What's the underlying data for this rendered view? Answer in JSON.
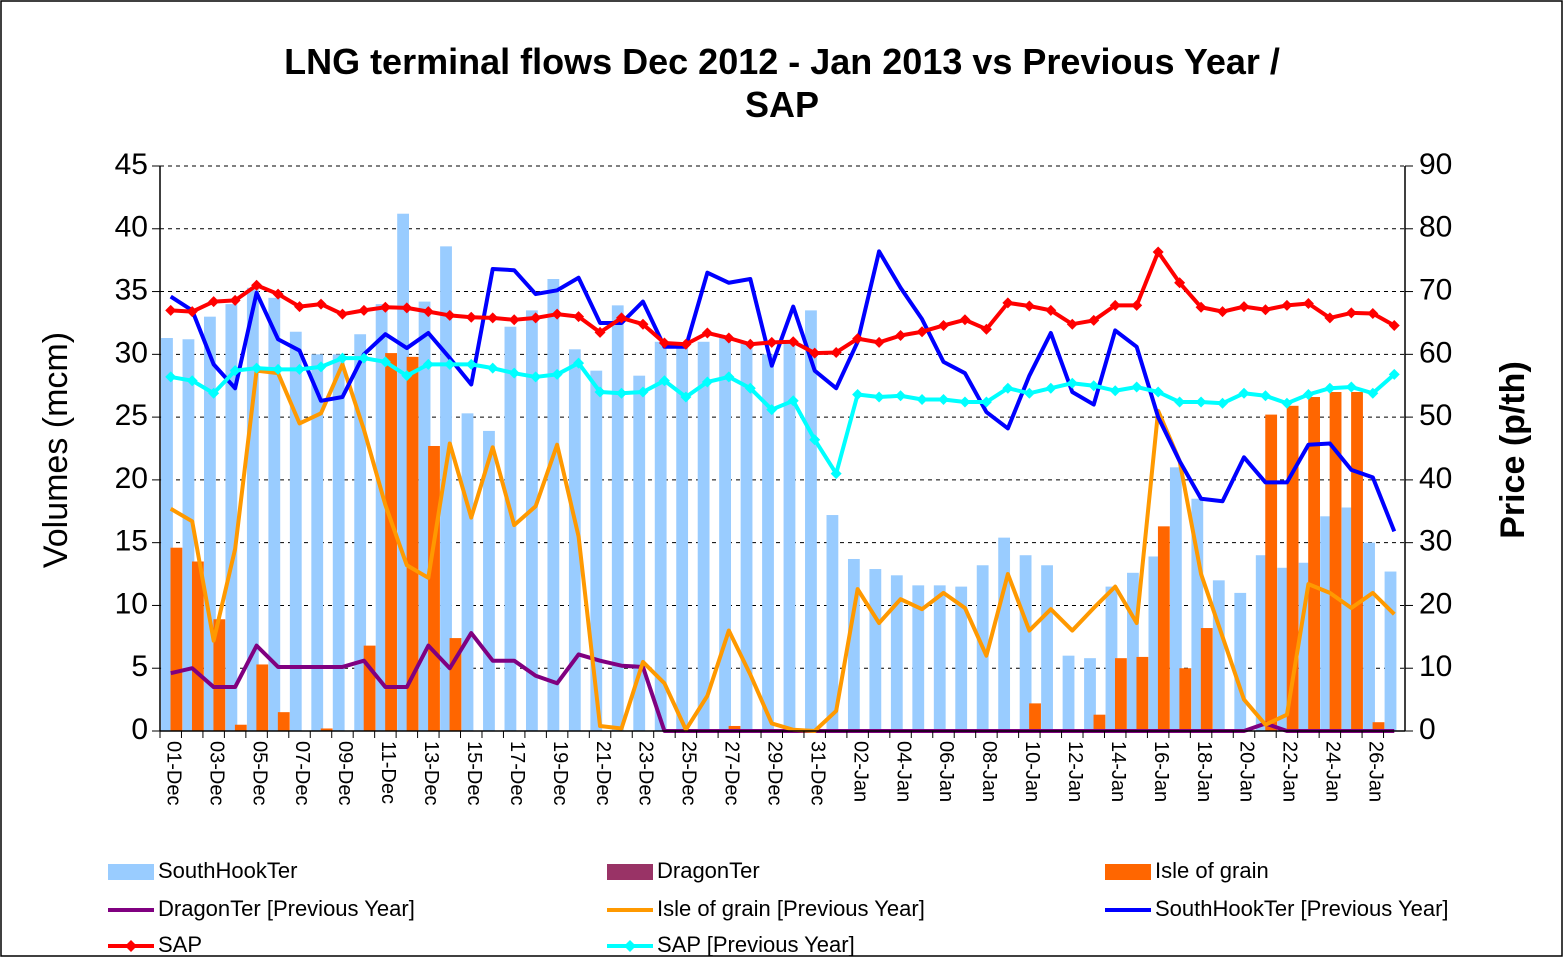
{
  "chart_data": {
    "type": "bar",
    "title": "LNG terminal flows Dec 2012 - Jan 2013 vs Previous Year / SAP",
    "y_label": "Volumes (mcm)",
    "y2_label": "Price (p/th)",
    "categories": [
      "01-Dec",
      null,
      "03-Dec",
      null,
      "05-Dec",
      null,
      "07-Dec",
      null,
      "09-Dec",
      null,
      "11-Dec",
      null,
      "13-Dec",
      null,
      "15-Dec",
      null,
      "17-Dec",
      null,
      "19-Dec",
      null,
      "21-Dec",
      null,
      "23-Dec",
      null,
      "25-Dec",
      null,
      "27-Dec",
      null,
      "29-Dec",
      null,
      "31-Dec",
      null,
      "02-Jan",
      null,
      "04-Jan",
      null,
      "06-Jan",
      null,
      "08-Jan",
      null,
      "10-Jan",
      null,
      "12-Jan",
      null,
      "14-Jan",
      null,
      "16-Jan",
      null,
      "18-Jan",
      null,
      "20-Jan",
      null,
      "22-Jan",
      null,
      "24-Jan",
      null,
      "26-Jan",
      null
    ],
    "ylim": [
      0,
      45
    ],
    "yticks": [
      0,
      5,
      10,
      15,
      20,
      25,
      30,
      35,
      40,
      45
    ],
    "y2lim": [
      0,
      90
    ],
    "y2ticks": [
      0,
      10,
      20,
      30,
      40,
      50,
      60,
      70,
      80,
      90
    ],
    "grid": true,
    "series": [
      {
        "name": "SouthHookTer",
        "type": "bar",
        "color": "#99ccff",
        "values": [
          31.3,
          31.2,
          33,
          34,
          35.3,
          34.5,
          31.8,
          30,
          30,
          31.6,
          34,
          41.2,
          34.2,
          38.6,
          25.3,
          23.9,
          32.2,
          33.5,
          36,
          30.4,
          28.7,
          33.9,
          28.3,
          31,
          30.5,
          31,
          31.5,
          31,
          30,
          31,
          33.5,
          17.2,
          13.7,
          12.9,
          12.4,
          11.6,
          11.6,
          11.5,
          13.2,
          15.4,
          14,
          13.2,
          6,
          5.8,
          11.5,
          12.6,
          13.9,
          21,
          18.5,
          12,
          11,
          14,
          13,
          13.4,
          17.1,
          17.8,
          15,
          12.7
        ]
      },
      {
        "name": "DragonTer",
        "type": "bar",
        "color": "#993366",
        "values": [
          0,
          0,
          0,
          0,
          0,
          0,
          0,
          0,
          0,
          0,
          0,
          0,
          0,
          0,
          0,
          0,
          0,
          0,
          0,
          0,
          0,
          0,
          0,
          0,
          0,
          0,
          0,
          0,
          0,
          0,
          0,
          0,
          0,
          0,
          0,
          0,
          0,
          0,
          0,
          0,
          0,
          0,
          0,
          0,
          0,
          0,
          0,
          0,
          0,
          0,
          0,
          0,
          0,
          0,
          0,
          0,
          0,
          0
        ]
      },
      {
        "name": "Isle of grain",
        "type": "bar",
        "color": "#ff6600",
        "values": [
          14.6,
          13.5,
          8.9,
          0.5,
          5.3,
          1.5,
          0,
          0.2,
          0,
          6.8,
          30.1,
          29.8,
          22.7,
          7.4,
          0,
          0,
          0,
          0,
          0,
          0,
          0,
          0,
          0,
          0,
          0,
          0,
          0.4,
          0,
          0,
          0,
          0,
          0,
          0,
          0,
          0,
          0,
          0,
          0,
          0,
          0,
          2.2,
          0,
          0,
          1.3,
          5.8,
          5.9,
          16.3,
          5,
          8.2,
          0,
          0,
          25.2,
          25.9,
          26.6,
          27,
          27,
          0.7,
          0
        ]
      },
      {
        "name": "DragonTer [Previous Year]",
        "type": "line",
        "color": "#800080",
        "values": [
          4.6,
          5,
          3.5,
          3.5,
          6.8,
          5.1,
          5.1,
          5.1,
          5.1,
          5.6,
          3.5,
          3.5,
          6.8,
          5,
          7.8,
          5.6,
          5.6,
          4.4,
          3.8,
          6.1,
          5.6,
          5.2,
          5.1,
          0,
          0,
          0,
          0,
          0,
          0,
          0,
          0,
          0,
          0,
          0,
          0,
          0,
          0,
          0,
          0,
          0,
          0,
          0,
          0,
          0,
          0,
          0,
          0,
          0,
          0,
          0,
          0,
          0.6,
          0,
          0,
          0,
          0,
          0,
          0
        ]
      },
      {
        "name": "Isle of grain [Previous Year]",
        "type": "line",
        "color": "#ff9900",
        "values": [
          17.7,
          16.7,
          7.2,
          14.5,
          28.7,
          28.5,
          24.5,
          25.3,
          29.2,
          24,
          18,
          13.2,
          12.2,
          22.9,
          17,
          22.6,
          16.4,
          17.9,
          22.8,
          15.5,
          0.4,
          0.2,
          5.5,
          3.8,
          0.1,
          2.8,
          8,
          4.5,
          0.6,
          0.1,
          0,
          1.6,
          11.3,
          8.6,
          10.5,
          9.7,
          11,
          9.8,
          6,
          12.5,
          8,
          9.7,
          8,
          9.8,
          11.5,
          8.6,
          25.5,
          21.5,
          12.5,
          7.5,
          2.5,
          0.5,
          1.3,
          11.7,
          11,
          9.8,
          11,
          9.3
        ]
      },
      {
        "name": "SouthHookTer [Previous Year]",
        "type": "line",
        "color": "#0000ff",
        "values": [
          34.6,
          33.5,
          29.2,
          27.3,
          34.9,
          31.2,
          30.3,
          26.3,
          26.6,
          30,
          31.6,
          30.5,
          31.7,
          29.7,
          27.6,
          36.8,
          36.7,
          34.8,
          35.1,
          36.1,
          32.5,
          32.5,
          34.2,
          30.6,
          30.6,
          36.5,
          35.7,
          36,
          29.1,
          33.8,
          28.7,
          27.3,
          31,
          38.2,
          35.3,
          32.8,
          29.4,
          28.5,
          25.4,
          24.1,
          28.3,
          31.7,
          27,
          26,
          31.9,
          30.6,
          25,
          21.5,
          18.5,
          18.3,
          21.8,
          19.8,
          19.8,
          22.8,
          22.9,
          20.8,
          20.2,
          15.9
        ]
      },
      {
        "name": "SAP",
        "type": "line",
        "axis": "y2",
        "marker": "diamond",
        "color": "#ff0000",
        "values": [
          67,
          66.8,
          68.4,
          68.6,
          71,
          69.6,
          67.6,
          68,
          66.4,
          67,
          67.5,
          67.4,
          66.8,
          66.2,
          65.9,
          65.8,
          65.5,
          65.8,
          66.4,
          66,
          63.5,
          65.8,
          64.8,
          61.8,
          61.6,
          63.4,
          62.6,
          61.6,
          61.9,
          62,
          60.2,
          60.3,
          62.5,
          61.9,
          63,
          63.6,
          64.6,
          65.5,
          64,
          68.2,
          67.7,
          67,
          64.8,
          65.4,
          67.8,
          67.8,
          76.3,
          71.4,
          67.5,
          66.8,
          67.6,
          67.1,
          67.8,
          68.1,
          65.8,
          66.6,
          66.5,
          64.6
        ]
      },
      {
        "name": "SAP [Previous Year]",
        "type": "line",
        "axis": "y2",
        "marker": "diamond",
        "color": "#00ffff",
        "values": [
          56.4,
          55.8,
          53.8,
          57.4,
          57.8,
          57.6,
          57.6,
          58,
          59.4,
          59.4,
          58.8,
          56.6,
          58.4,
          58.4,
          58.4,
          57.8,
          57,
          56.4,
          56.8,
          58.6,
          54,
          53.8,
          54,
          55.8,
          53.2,
          55.6,
          56.4,
          54.6,
          51.2,
          52.6,
          46.4,
          41,
          53.6,
          53.2,
          53.4,
          52.8,
          52.8,
          52.4,
          52.4,
          54.6,
          53.8,
          54.6,
          55.4,
          55,
          54.2,
          54.8,
          54,
          52.4,
          52.4,
          52.2,
          53.8,
          53.4,
          52.2,
          53.6,
          54.6,
          54.8,
          53.8,
          56.8
        ]
      }
    ]
  }
}
